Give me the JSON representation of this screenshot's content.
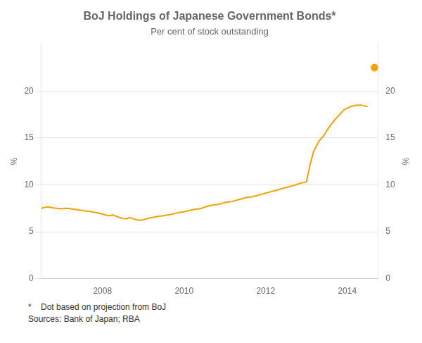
{
  "chart_data": {
    "type": "line",
    "title": "BoJ Holdings of Japanese Government Bonds*",
    "subtitle": "Per cent of stock outstanding",
    "ylabel": "%",
    "y2label": "%",
    "annotations": [
      "*    Dot based on projection from BoJ",
      "Sources: Bank of Japan; RBA"
    ],
    "xlim": [
      2006.5,
      2014.75
    ],
    "xticks": [
      2008,
      2010,
      2012,
      2014
    ],
    "ylim": [
      0,
      25
    ],
    "yticks": [
      0,
      5,
      10,
      15,
      20
    ],
    "y2lim": [
      0,
      25
    ],
    "y2ticks": [
      0,
      5,
      10,
      15,
      20
    ],
    "grid": "y",
    "series": [
      {
        "type": "line",
        "color": "#F5A000",
        "x": [
          2006.5,
          2006.58,
          2006.67,
          2006.75,
          2006.83,
          2006.92,
          2007.0,
          2007.08,
          2007.17,
          2007.25,
          2007.33,
          2007.42,
          2007.5,
          2007.58,
          2007.67,
          2007.75,
          2007.83,
          2007.92,
          2008.0,
          2008.08,
          2008.17,
          2008.25,
          2008.33,
          2008.42,
          2008.5,
          2008.58,
          2008.67,
          2008.75,
          2008.83,
          2008.92,
          2009.0,
          2009.08,
          2009.17,
          2009.25,
          2009.33,
          2009.42,
          2009.5,
          2009.58,
          2009.67,
          2009.75,
          2009.83,
          2009.92,
          2010.0,
          2010.08,
          2010.17,
          2010.25,
          2010.33,
          2010.42,
          2010.5,
          2010.58,
          2010.67,
          2010.75,
          2010.83,
          2010.92,
          2011.0,
          2011.08,
          2011.17,
          2011.25,
          2011.33,
          2011.42,
          2011.5,
          2011.58,
          2011.67,
          2011.75,
          2011.83,
          2011.92,
          2012.0,
          2012.08,
          2012.17,
          2012.25,
          2012.33,
          2012.42,
          2012.5,
          2012.58,
          2012.67,
          2012.75,
          2012.83,
          2012.92,
          2013.0,
          2013.08,
          2013.17,
          2013.25,
          2013.33,
          2013.42,
          2013.5,
          2013.58,
          2013.67,
          2013.75,
          2013.83,
          2013.92,
          2014.0,
          2014.08,
          2014.17,
          2014.25,
          2014.33,
          2014.42,
          2014.5
        ],
        "values": [
          7.5,
          7.6,
          7.65,
          7.58,
          7.52,
          7.48,
          7.45,
          7.5,
          7.48,
          7.42,
          7.38,
          7.32,
          7.28,
          7.22,
          7.18,
          7.12,
          7.05,
          6.98,
          6.88,
          6.78,
          6.72,
          6.8,
          6.65,
          6.52,
          6.42,
          6.38,
          6.52,
          6.38,
          6.28,
          6.22,
          6.28,
          6.38,
          6.48,
          6.55,
          6.62,
          6.68,
          6.72,
          6.78,
          6.85,
          6.92,
          7.02,
          7.08,
          7.12,
          7.22,
          7.32,
          7.38,
          7.42,
          7.48,
          7.62,
          7.72,
          7.82,
          7.88,
          7.92,
          8.02,
          8.12,
          8.18,
          8.22,
          8.32,
          8.42,
          8.52,
          8.62,
          8.68,
          8.72,
          8.82,
          8.92,
          9.02,
          9.12,
          9.22,
          9.32,
          9.4,
          9.52,
          9.62,
          9.72,
          9.82,
          9.92,
          10.02,
          10.15,
          10.25,
          10.32,
          12.0,
          13.5,
          14.2,
          14.8,
          15.2,
          15.8,
          16.3,
          16.8,
          17.2,
          17.6,
          18.0,
          18.2,
          18.35,
          18.45,
          18.5,
          18.5,
          18.42,
          18.35
        ]
      },
      {
        "type": "scatter",
        "color": "#F5A000",
        "marker": "circle",
        "x": [
          2014.67
        ],
        "values": [
          22.5
        ]
      }
    ]
  }
}
